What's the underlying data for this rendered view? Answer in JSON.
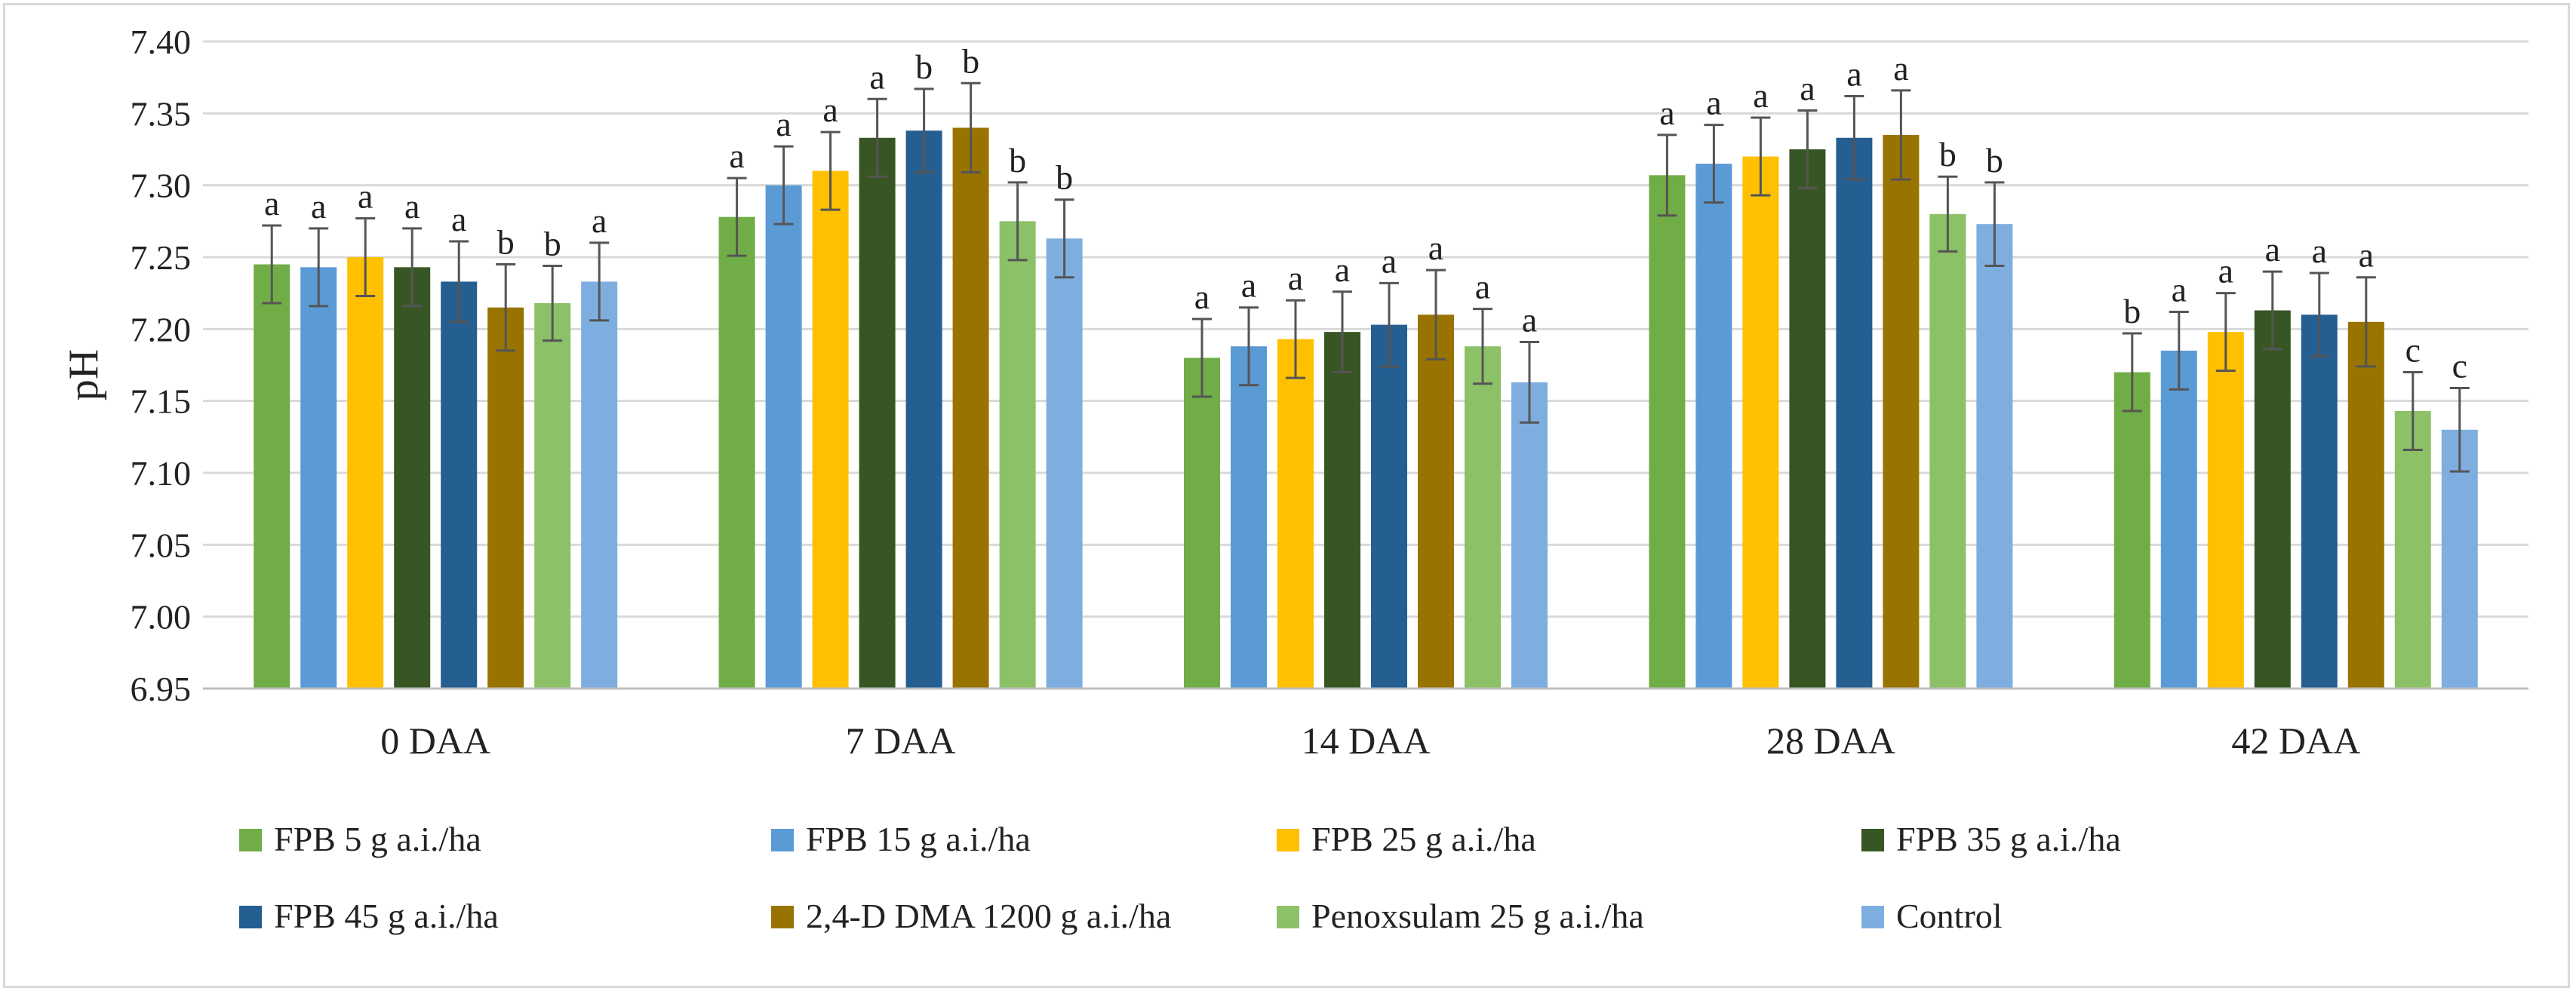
{
  "chart_data": {
    "type": "bar",
    "title": "",
    "xlabel": "",
    "ylabel": "pH",
    "ylim": [
      6.95,
      7.4
    ],
    "yticks": [
      "6.95",
      "7.00",
      "7.05",
      "7.10",
      "7.15",
      "7.20",
      "7.25",
      "7.30",
      "7.35",
      "7.40"
    ],
    "grid": true,
    "legend_position": "bottom",
    "categories": [
      "0 DAA",
      "7 DAA",
      "14 DAA",
      "28 DAA",
      "42 DAA"
    ],
    "series": [
      {
        "name": "FPB 5 g a.i./ha",
        "color": "#70ad47",
        "values": [
          7.245,
          7.278,
          7.18,
          7.307,
          7.17
        ],
        "errors": [
          0.027,
          0.027,
          0.027,
          0.028,
          0.027
        ],
        "letters": [
          "a",
          "a",
          "a",
          "a",
          "b"
        ]
      },
      {
        "name": "FPB 15 g a.i./ha",
        "color": "#5b9bd5",
        "values": [
          7.243,
          7.3,
          7.188,
          7.315,
          7.185
        ],
        "errors": [
          0.027,
          0.027,
          0.027,
          0.027,
          0.027
        ],
        "letters": [
          "a",
          "a",
          "a",
          "a",
          "a"
        ]
      },
      {
        "name": "FPB 25 g a.i./ha",
        "color": "#ffc000",
        "values": [
          7.25,
          7.31,
          7.193,
          7.32,
          7.198
        ],
        "errors": [
          0.027,
          0.027,
          0.027,
          0.027,
          0.027
        ],
        "letters": [
          "a",
          "a",
          "a",
          "a",
          "a"
        ]
      },
      {
        "name": "FPB 35 g a.i./ha",
        "color": "#375623",
        "values": [
          7.243,
          7.333,
          7.198,
          7.325,
          7.213
        ],
        "errors": [
          0.027,
          0.027,
          0.028,
          0.027,
          0.027
        ],
        "letters": [
          "a",
          "a",
          "a",
          "a",
          "a"
        ]
      },
      {
        "name": "FPB 45 g a.i./ha",
        "color": "#255e91",
        "values": [
          7.233,
          7.338,
          7.203,
          7.333,
          7.21
        ],
        "errors": [
          0.028,
          0.029,
          0.029,
          0.029,
          0.029
        ],
        "letters": [
          "a",
          "b",
          "a",
          "a",
          "a"
        ]
      },
      {
        "name": "2,4-D DMA 1200 g a.i./ha",
        "color": "#997300",
        "values": [
          7.215,
          7.34,
          7.21,
          7.335,
          7.205
        ],
        "errors": [
          0.03,
          0.031,
          0.031,
          0.031,
          0.031
        ],
        "letters": [
          "b",
          "b",
          "a",
          "a",
          "a"
        ]
      },
      {
        "name": "Penoxsulam 25 g a.i./ha",
        "color": "#8cc168",
        "values": [
          7.218,
          7.275,
          7.188,
          7.28,
          7.143
        ],
        "errors": [
          0.026,
          0.027,
          0.026,
          0.026,
          0.027
        ],
        "letters": [
          "b",
          "b",
          "a",
          "b",
          "c"
        ]
      },
      {
        "name": "Control",
        "color": "#7eaee0",
        "values": [
          7.233,
          7.263,
          7.163,
          7.273,
          7.13
        ],
        "errors": [
          0.027,
          0.027,
          0.028,
          0.029,
          0.029
        ],
        "letters": [
          "a",
          "b",
          "a",
          "b",
          "c"
        ]
      }
    ]
  }
}
